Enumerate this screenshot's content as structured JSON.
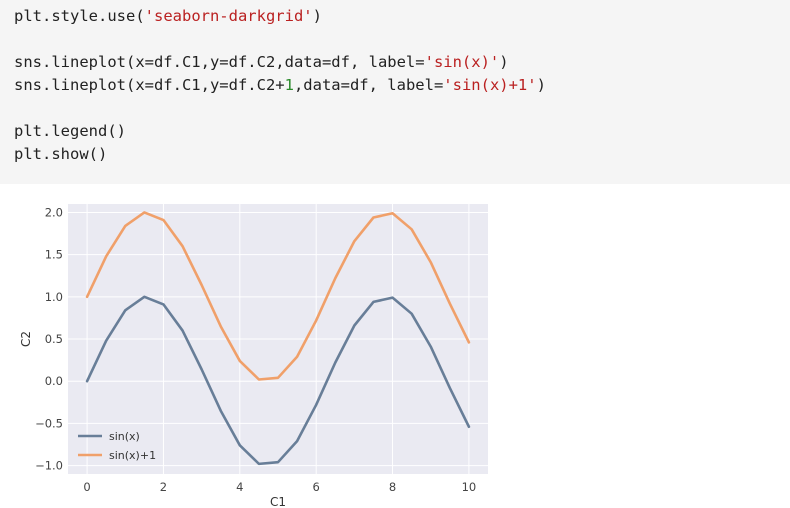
{
  "code_cell": {
    "line1": {
      "pre": "plt.style.use(",
      "str": "'seaborn-darkgrid'",
      "post": ")"
    },
    "line3": {
      "pre": "sns.lineplot(x=df.C1,y=df.C2,data=df, label=",
      "str": "'sin(x)'",
      "post": ")"
    },
    "line4": {
      "pre": "sns.lineplot(x=df.C1,y=df.C2+",
      "num": "1",
      "mid": ",data=df, label=",
      "str": "'sin(x)+1'",
      "post": ")"
    },
    "line6": "plt.legend()",
    "line7": "plt.show()"
  },
  "chart_data": {
    "type": "line",
    "xlabel": "C1",
    "ylabel": "C2",
    "xlim": [
      -0.5,
      10.5
    ],
    "ylim": [
      -1.1,
      2.1
    ],
    "grid": true,
    "legend_position": "lower-left",
    "x_ticks": [
      0,
      2,
      4,
      6,
      8,
      10
    ],
    "x_tick_labels": [
      "0",
      "2",
      "4",
      "6",
      "8",
      "10"
    ],
    "y_ticks": [
      -1.0,
      -0.5,
      0.0,
      0.5,
      1.0,
      1.5,
      2.0
    ],
    "y_tick_labels": [
      "−1.0",
      "−0.5",
      "0.0",
      "0.5",
      "1.0",
      "1.5",
      "2.0"
    ],
    "series": [
      {
        "name": "sin(x)",
        "color": "#687e98",
        "x": [
          0,
          0.5,
          1,
          1.5,
          2,
          2.5,
          3,
          3.5,
          4,
          4.5,
          5,
          5.5,
          6,
          6.5,
          7,
          7.5,
          8,
          8.5,
          9,
          9.5,
          10
        ],
        "y": [
          0,
          0.48,
          0.84,
          1.0,
          0.91,
          0.6,
          0.14,
          -0.35,
          -0.76,
          -0.98,
          -0.96,
          -0.71,
          -0.28,
          0.22,
          0.66,
          0.94,
          0.99,
          0.8,
          0.41,
          -0.08,
          -0.54
        ]
      },
      {
        "name": "sin(x)+1",
        "color": "#f0a06a",
        "x": [
          0,
          0.5,
          1,
          1.5,
          2,
          2.5,
          3,
          3.5,
          4,
          4.5,
          5,
          5.5,
          6,
          6.5,
          7,
          7.5,
          8,
          8.5,
          9,
          9.5,
          10
        ],
        "y": [
          1.0,
          1.48,
          1.84,
          2.0,
          1.91,
          1.6,
          1.14,
          0.65,
          0.24,
          0.02,
          0.04,
          0.29,
          0.72,
          1.22,
          1.66,
          1.94,
          1.99,
          1.8,
          1.41,
          0.92,
          0.46
        ]
      }
    ]
  }
}
